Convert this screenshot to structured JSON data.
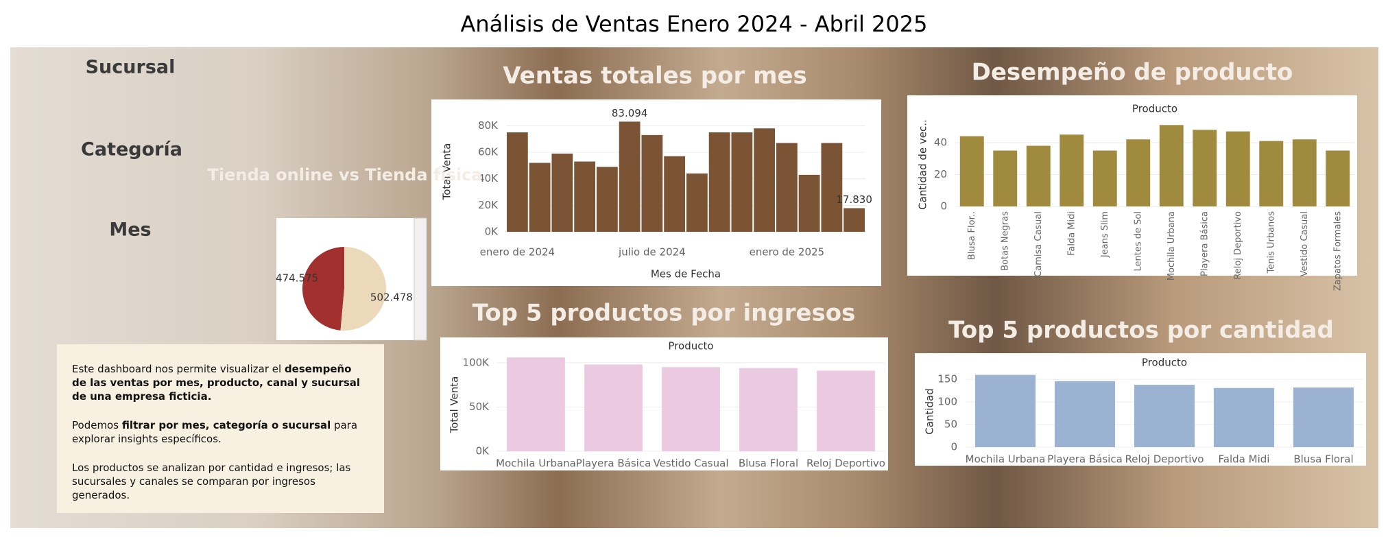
{
  "title": "Análisis de Ventas Enero 2024 - Abril 2025",
  "filters": [
    "Sucursal",
    "Categoría",
    "Mes"
  ],
  "description": [
    [
      {
        "text": "Este dashboard nos permite visualizar el ",
        "bold": false
      },
      {
        "text": "desempeño de las ventas por mes, producto, canal y sucursal de una empresa ficticia.",
        "bold": true
      }
    ],
    [
      {
        "text": "Podemos ",
        "bold": false
      },
      {
        "text": "filtrar por mes, categoría o sucursal",
        "bold": true
      },
      {
        "text": " para explorar insights específicos.",
        "bold": false
      }
    ],
    [
      {
        "text": "Los productos se analizan por cantidad e ingresos; las sucursales y canales se comparan por ingresos generados.",
        "bold": false
      }
    ]
  ],
  "chart_data": [
    {
      "type": "bar",
      "title": "Ventas totales por mes",
      "x_label": "Mes de Fecha",
      "y_label": "Total Venta",
      "categories": [
        "enero de 2024",
        null,
        null,
        null,
        null,
        null,
        "julio de 2024",
        null,
        null,
        null,
        null,
        null,
        "enero de 2025",
        null,
        null,
        null
      ],
      "values": [
        75000,
        52000,
        59000,
        53000,
        49000,
        83094,
        73000,
        57000,
        44000,
        75000,
        75000,
        78000,
        67000,
        43000,
        67000,
        17830
      ],
      "value_labels": [
        null,
        null,
        null,
        null,
        null,
        "83.094",
        null,
        null,
        null,
        null,
        null,
        null,
        null,
        null,
        null,
        "17.830"
      ],
      "color": "#7a5434",
      "ylim": [
        0,
        90000
      ],
      "yticks": [
        {
          "value": 0,
          "label": "0K"
        },
        {
          "value": 20000,
          "label": "20K"
        },
        {
          "value": 40000,
          "label": "40K"
        },
        {
          "value": 60000,
          "label": "60K"
        },
        {
          "value": 80000,
          "label": "80K"
        }
      ],
      "grid": true
    },
    {
      "type": "pie",
      "title": "Tienda online vs Tienda física",
      "values": [
        474575,
        502478
      ],
      "value_labels": [
        "474.575",
        "502.478"
      ],
      "colors": [
        "#a1302f",
        "#ecd9b9"
      ]
    },
    {
      "type": "bar",
      "title": "Desempeño de producto",
      "header": "Producto",
      "y_label": "Cantidad de vec..",
      "categories": [
        "Blusa Flor..",
        "Botas Negras",
        "Camisa Casual",
        "Falda Midi",
        "Jeans Slim",
        "Lentes de Sol",
        "Mochila Urbana",
        "Playera Básica",
        "Reloj Deportivo",
        "Tenis Urbanos",
        "Vestido Casual",
        "Zapatos Formales"
      ],
      "values": [
        44,
        35,
        38,
        45,
        35,
        42,
        51,
        48,
        47,
        41,
        42,
        35
      ],
      "color": "#a08a3e",
      "ylim": [
        0,
        55
      ],
      "yticks": [
        0,
        20,
        40
      ],
      "grid": true
    },
    {
      "type": "bar",
      "title": "Top 5 productos por ingresos",
      "header": "Producto",
      "y_label": "Total Venta",
      "categories": [
        "Mochila Urbana",
        "Playera Básica",
        "Vestido Casual",
        "Blusa Floral",
        "Reloj Deportivo"
      ],
      "values": [
        106000,
        98000,
        95000,
        94000,
        91000
      ],
      "color": "#ebc9e1",
      "ylim": [
        0,
        110000
      ],
      "yticks": [
        {
          "value": 0,
          "label": "0K"
        },
        {
          "value": 50000,
          "label": "50K"
        },
        {
          "value": 100000,
          "label": "100K"
        }
      ],
      "grid": true
    },
    {
      "type": "bar",
      "title": "Top 5 productos por cantidad",
      "header": "Producto",
      "y_label": "Cantidad",
      "categories": [
        "Mochila Urbana",
        "Playera Básica",
        "Reloj Deportivo",
        "Falda Midi",
        "Blusa Floral"
      ],
      "values": [
        160,
        146,
        138,
        131,
        132
      ],
      "color": "#9bb3d1",
      "ylim": [
        0,
        170
      ],
      "yticks": [
        0,
        50,
        100,
        150
      ],
      "grid": true
    }
  ]
}
